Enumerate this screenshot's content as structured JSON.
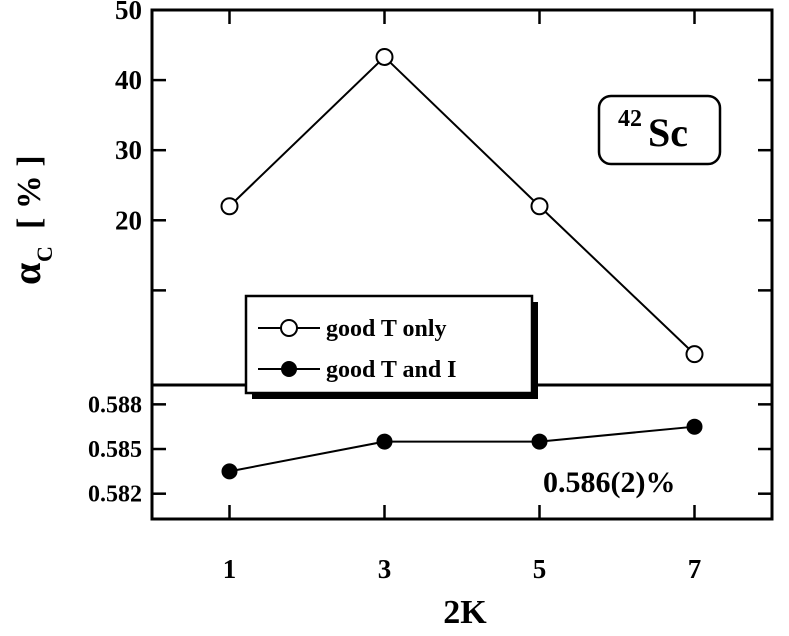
{
  "chart_data": [
    {
      "type": "line",
      "panel": "top",
      "x": [
        1,
        3,
        5,
        7
      ],
      "series": [
        {
          "name": "good T only",
          "marker": "open-circle",
          "values": [
            22,
            43.3,
            22,
            0.9
          ]
        }
      ],
      "xlim": [
        0,
        8
      ],
      "ylim": [
        -3.5,
        50
      ],
      "yticks": [
        20,
        30,
        40,
        50
      ],
      "ylabel": "α",
      "ylabel_sub": "C",
      "ylabel_unit": "[ % ]",
      "annotation": {
        "super": "42",
        "text": "Sc"
      },
      "legend": "bottom-left"
    },
    {
      "type": "line",
      "panel": "bottom",
      "x": [
        1,
        3,
        5,
        7
      ],
      "series": [
        {
          "name": "good T and I",
          "marker": "filled-circle",
          "values": [
            0.5835,
            0.5855,
            0.5855,
            0.5865
          ]
        }
      ],
      "xlim": [
        0,
        8
      ],
      "ylim": [
        0.5803,
        0.5893
      ],
      "yticks": [
        0.582,
        0.585,
        0.588
      ],
      "ytick_labels": [
        "0.582",
        "0.585",
        "0.588"
      ],
      "xticks": [
        1,
        3,
        5,
        7
      ],
      "xtick_labels": [
        "1",
        "3",
        "5",
        "7"
      ],
      "xlabel": "2K",
      "annotation": "0.586(2)%"
    }
  ],
  "colors": {
    "line": "#000000",
    "open_fill": "#ffffff",
    "filled": "#000000"
  }
}
